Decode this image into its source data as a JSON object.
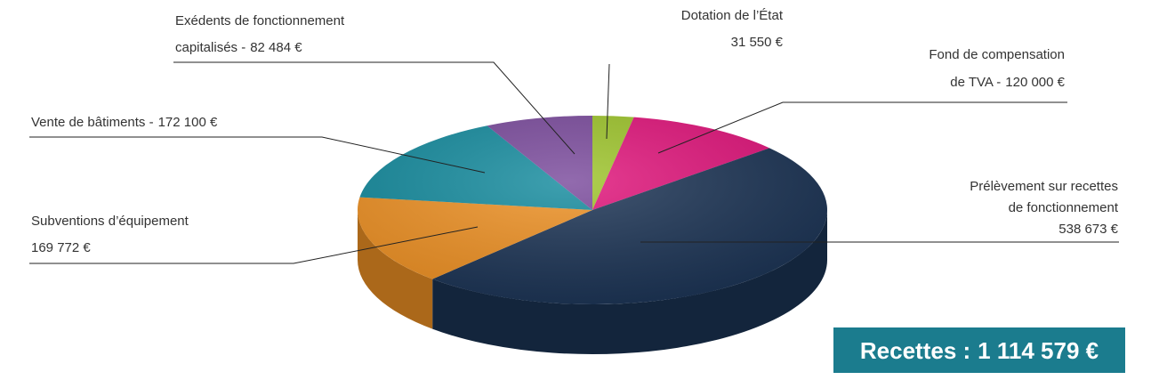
{
  "chart_data": {
    "type": "pie3d",
    "categories": [
      [
        "Dotation de l’État"
      ],
      [
        "Fond de compensation",
        "de TVA -"
      ],
      [
        "Prélèvement sur recettes",
        "de fonctionnement"
      ],
      [
        "Subventions d’équipement"
      ],
      [
        "Vente de bâtiments -"
      ],
      [
        "Exédents de fonctionnement",
        "capitalisés -"
      ]
    ],
    "values": [
      31550,
      120000,
      538673,
      169772,
      172100,
      82484
    ],
    "value_labels": [
      "31 550 €",
      "120 000 €",
      "538 673 €",
      "169 772 €",
      "172 100 €",
      "82 484 €"
    ],
    "colors": [
      "#9dc42a",
      "#e0137a",
      "#1b3354",
      "#ee9124",
      "#148b9e",
      "#7a4a9c"
    ],
    "annotation": {
      "text": "Recettes :",
      "value": 1114579,
      "value_label": "1 114 579 €"
    }
  }
}
